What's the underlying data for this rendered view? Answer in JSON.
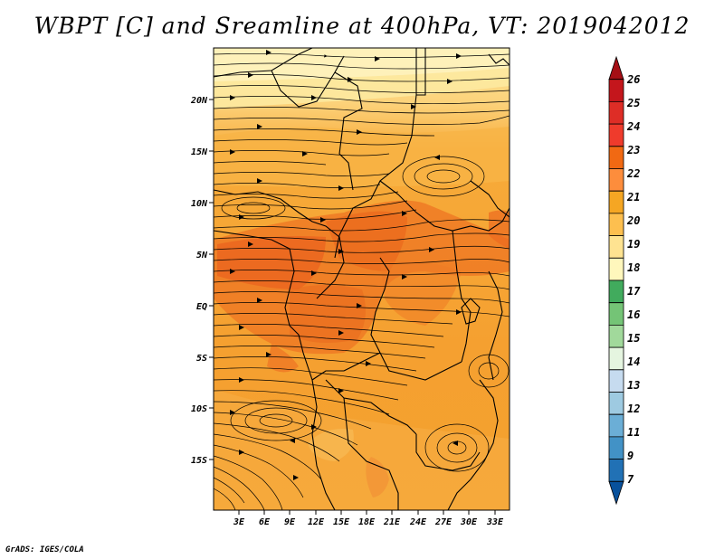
{
  "title": "WBPT [C] and Sreamline at 400hPa, VT: 2019042012",
  "credit": "GrADS: IGES/COLA",
  "map": {
    "lat_ticks": [
      "20N",
      "15N",
      "10N",
      "5N",
      "EQ",
      "5S",
      "10S",
      "15S"
    ],
    "lon_ticks": [
      "3E",
      "6E",
      "9E",
      "12E",
      "15E",
      "18E",
      "21E",
      "24E",
      "27E",
      "30E",
      "33E"
    ]
  },
  "colorbar": {
    "labels": [
      "26",
      "25",
      "24",
      "23",
      "22",
      "21",
      "20",
      "19",
      "18",
      "17",
      "16",
      "15",
      "14",
      "13",
      "12",
      "11",
      "9",
      "7"
    ],
    "colors": [
      "#a50f15",
      "#c4161c",
      "#de2d26",
      "#ef3b2c",
      "#f16913",
      "#fd8d3c",
      "#f5a623",
      "#fdbf4f",
      "#fee391",
      "#fff7bc",
      "#41ab5d",
      "#74c476",
      "#a1d99b",
      "#e5f5e0",
      "#c6dbef",
      "#9ecae1",
      "#6baed6",
      "#4292c6",
      "#2171b5",
      "#08519c"
    ]
  }
}
